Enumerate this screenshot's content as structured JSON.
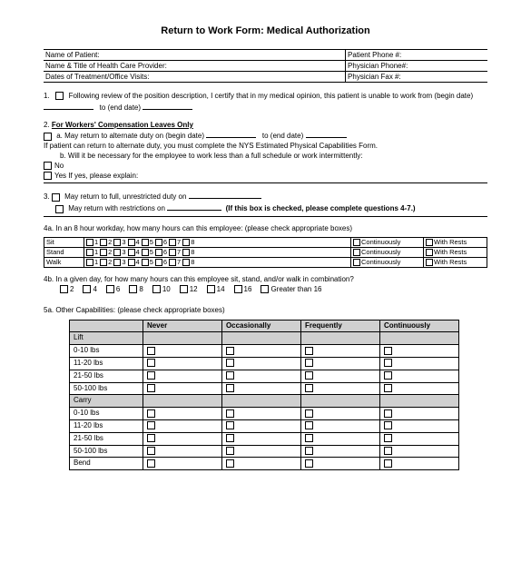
{
  "title": "Return to Work Form: Medical Authorization",
  "header": {
    "r1a": "Name of Patient:",
    "r1b": "Patient Phone #:",
    "r2a": "Name & Title of Health Care Provider:",
    "r2b": "Physician Phone#:",
    "r3a": "Dates of Treatment/Office Visits:",
    "r3b": "Physician Fax #:"
  },
  "s1": {
    "n": "1.",
    "text": "Following review of the position description, I certify that in my medical opinion, this patient is unable to work from (begin date)",
    "to": "to (end date)"
  },
  "s2": {
    "n": "2.",
    "title": "For Workers' Compensation Leaves Only",
    "a": "a. May return to alternate duty on (begin date)",
    "a_to": "to (end date)",
    "note": "If patient can return to alternate duty, you must complete the NYS Estimated Physical Capabilities Form.",
    "b": "b. Will it be necessary for the employee to work less than a full schedule or work intermittently:",
    "no": "No",
    "yes": "Yes   If yes, please explain:"
  },
  "s3": {
    "n": "3.",
    "a": "May return to full, unrestricted duty on",
    "b": "May return with restrictions on",
    "bbold": "(If this box is checked, please complete questions 4-7.)"
  },
  "s4a": {
    "lead": "4a. In an 8 hour workday, how many hours can this employee:     (please check appropriate boxes)",
    "rows": [
      "Sit",
      "Stand",
      "Walk"
    ],
    "nums": [
      "1",
      "2",
      "3",
      "4",
      "5",
      "6",
      "7",
      "8"
    ],
    "cont": "Continuously",
    "wr": "With Rests"
  },
  "s4b": {
    "lead": "4b. In a given day, for how many hours can this employee sit, stand, and/or walk in combination?",
    "opts": [
      "2",
      "4",
      "6",
      "8",
      "10",
      "12",
      "14",
      "16"
    ],
    "gt": "Greater than 16"
  },
  "s5a": {
    "lead": "5a. Other Capabilities: (please check appropriate boxes)",
    "cols": [
      "",
      "Never",
      "Occasionally",
      "Frequently",
      "Continuously"
    ],
    "rows": [
      {
        "label": "Lift",
        "shade": true
      },
      {
        "label": "0-10 lbs"
      },
      {
        "label": "11-20 lbs"
      },
      {
        "label": "21-50 lbs"
      },
      {
        "label": "50-100 lbs"
      },
      {
        "label": "Carry",
        "shade": true
      },
      {
        "label": "0-10 lbs"
      },
      {
        "label": "11-20 lbs"
      },
      {
        "label": "21-50 lbs"
      },
      {
        "label": "50-100 lbs"
      },
      {
        "label": "Bend"
      }
    ]
  }
}
